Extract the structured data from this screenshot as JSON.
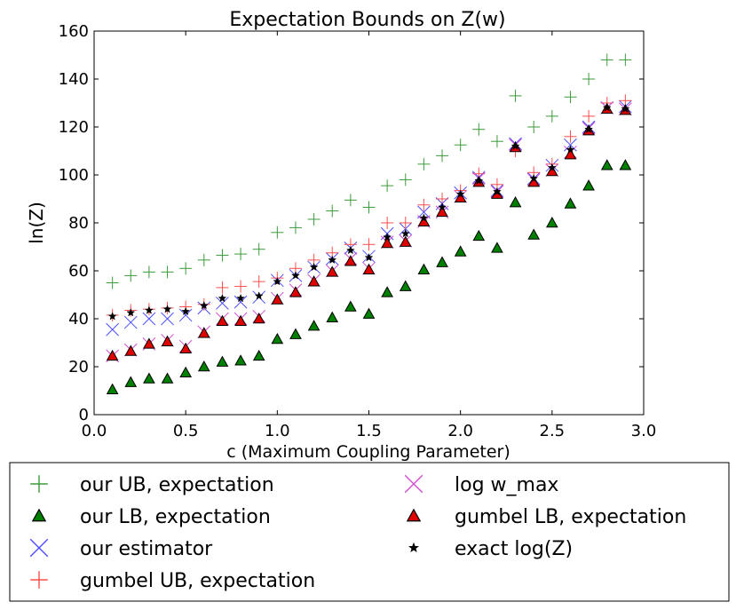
{
  "chart_data": {
    "type": "scatter",
    "title": "Expectation Bounds on Z(w)",
    "xlabel": "c (Maximum Coupling Parameter)",
    "ylabel": "ln(Z)",
    "xlim": [
      0.0,
      3.0
    ],
    "ylim": [
      0,
      160
    ],
    "xticks": [
      "0.0",
      "0.5",
      "1.0",
      "1.5",
      "2.0",
      "2.5",
      "3.0"
    ],
    "yticks": [
      "0",
      "20",
      "40",
      "60",
      "80",
      "100",
      "120",
      "140",
      "160"
    ],
    "grid": false,
    "legend_position": "bottom",
    "x": [
      0.1,
      0.2,
      0.3,
      0.4,
      0.5,
      0.6,
      0.7,
      0.8,
      0.9,
      1.0,
      1.1,
      1.2,
      1.3,
      1.4,
      1.5,
      1.6,
      1.7,
      1.8,
      1.9,
      2.0,
      2.1,
      2.2,
      2.3,
      2.4,
      2.5,
      2.6,
      2.7,
      2.8,
      2.9
    ],
    "series": [
      {
        "name": "our UB, expectation",
        "marker": "plus",
        "color": "#3c9a3c",
        "values": [
          55,
          58,
          59.5,
          59.5,
          61,
          64.5,
          66.5,
          67,
          69,
          76,
          78,
          81.5,
          85,
          89.5,
          86.5,
          95.5,
          98,
          104.5,
          108,
          112.5,
          119,
          114,
          133,
          120,
          124.5,
          132.5,
          140,
          148,
          148
        ]
      },
      {
        "name": "our LB, expectation",
        "marker": "triangle",
        "color": "#008000",
        "values": [
          10.5,
          13.5,
          15,
          15,
          17.5,
          20,
          22,
          22.5,
          24.5,
          31.5,
          33.5,
          37,
          40.5,
          45,
          42,
          51,
          53.5,
          60.5,
          63.5,
          68,
          74.5,
          69.5,
          88.5,
          75,
          80,
          88,
          95.5,
          104,
          104
        ]
      },
      {
        "name": "our estimator",
        "marker": "x",
        "color": "#4d4dff",
        "values": [
          35.5,
          38.5,
          40,
          40,
          41.5,
          44.5,
          46.5,
          47,
          49,
          56,
          58,
          61.5,
          65,
          69.5,
          66,
          75.5,
          77.5,
          84.5,
          88,
          92.5,
          99,
          93.5,
          113,
          98.5,
          104,
          112.5,
          120,
          128,
          128.5
        ]
      },
      {
        "name": "gumbel UB, expectation",
        "marker": "plus",
        "color": "#ff4d4d",
        "values": [
          41.5,
          43.5,
          44,
          44.5,
          45,
          46,
          53,
          53.5,
          55.5,
          57,
          61,
          64.5,
          67.5,
          71,
          71,
          80,
          80,
          87.5,
          90,
          93.5,
          100.5,
          96,
          110,
          101,
          104.5,
          116,
          124.5,
          130,
          131
        ]
      },
      {
        "name": "log w_max",
        "marker": "x",
        "color": "#d24dd2",
        "values": [
          24.5,
          27,
          29.5,
          31,
          28.5,
          34.5,
          40,
          40,
          41,
          48.5,
          52,
          56,
          60,
          65,
          61,
          72,
          72.5,
          80.5,
          84.5,
          91,
          98.5,
          93,
          112.5,
          98,
          102,
          109.5,
          119.5,
          128,
          127.5
        ]
      },
      {
        "name": "gumbel LB, expectation",
        "marker": "triangle",
        "color": "#e00000",
        "values": [
          24.5,
          26.5,
          29.5,
          30.5,
          27.5,
          34,
          39,
          39,
          40,
          48,
          51,
          55.5,
          59.5,
          64,
          60.5,
          71.5,
          72,
          80.5,
          84.5,
          90.5,
          97,
          92,
          111.5,
          97,
          101.5,
          108.5,
          118.5,
          127.5,
          127
        ]
      },
      {
        "name": "exact log(Z)",
        "marker": "star",
        "color": "#000000",
        "values": [
          41,
          42.5,
          43.5,
          44,
          43,
          45.5,
          48.5,
          48.5,
          49.5,
          55.5,
          58,
          61.5,
          64.5,
          68.5,
          65.5,
          74,
          75.5,
          82,
          86.5,
          92,
          97.5,
          93,
          112,
          98.5,
          103,
          110.5,
          119,
          128,
          127.5
        ]
      }
    ]
  }
}
